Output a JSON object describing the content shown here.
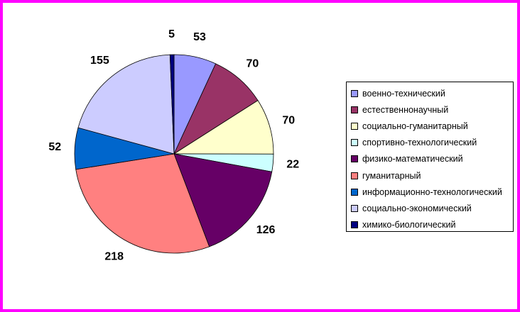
{
  "chart_data": {
    "type": "pie",
    "start_angle_deg": -90,
    "direction": "clockwise",
    "legend_position": "right",
    "slices": [
      {
        "name": "военно-технический",
        "value": 53,
        "color": "#9999ff"
      },
      {
        "name": "естественнонаучный",
        "value": 70,
        "color": "#993366"
      },
      {
        "name": "социально-гуманитарный",
        "value": 70,
        "color": "#ffffcc"
      },
      {
        "name": "спортивно-технологический",
        "value": 22,
        "color": "#ccffff"
      },
      {
        "name": "физико-математический",
        "value": 126,
        "color": "#660066"
      },
      {
        "name": "гуманитарный",
        "value": 218,
        "color": "#ff8080"
      },
      {
        "name": "информационно-технологический",
        "value": 52,
        "color": "#0066cc"
      },
      {
        "name": "социально-экономический",
        "value": 155,
        "color": "#ccccff"
      },
      {
        "name": "химико-биологический",
        "value": 5,
        "color": "#000080"
      }
    ]
  }
}
